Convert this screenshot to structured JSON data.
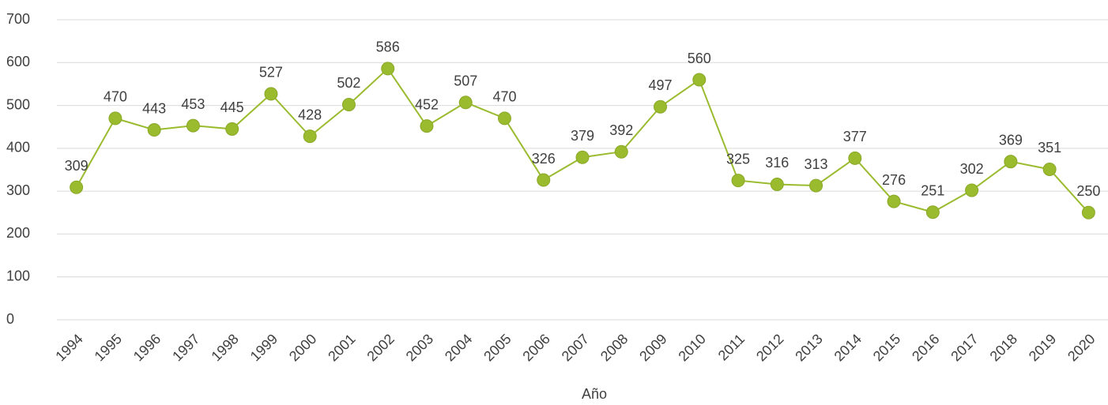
{
  "chart_data": {
    "type": "line",
    "categories": [
      "1994",
      "1995",
      "1996",
      "1997",
      "1998",
      "1999",
      "2000",
      "2001",
      "2002",
      "2003",
      "2004",
      "2005",
      "2006",
      "2007",
      "2008",
      "2009",
      "2010",
      "2011",
      "2012",
      "2013",
      "2014",
      "2015",
      "2016",
      "2017",
      "2018",
      "2019",
      "2020"
    ],
    "values": [
      309,
      470,
      443,
      453,
      445,
      527,
      428,
      502,
      586,
      452,
      507,
      470,
      326,
      379,
      392,
      497,
      560,
      325,
      316,
      313,
      377,
      276,
      251,
      302,
      369,
      351,
      250
    ],
    "color": "#9bbb2f",
    "x_label": "Año",
    "ylim": [
      0,
      700
    ],
    "yticks": [
      0,
      100,
      200,
      300,
      400,
      500,
      600,
      700
    ],
    "grid": true
  }
}
